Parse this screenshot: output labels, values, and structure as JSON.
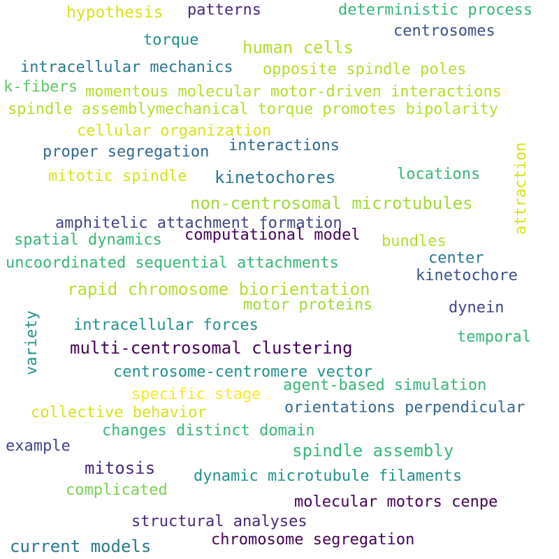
{
  "background": "#ffffff",
  "palette": {
    "dark_purple": "#440154",
    "indigo": "#3b528b",
    "blue": "#31688e",
    "teal": "#21918c",
    "green": "#35b779",
    "light_green": "#5ec962",
    "lime": "#b5de2b",
    "yellow": "#d8e219"
  },
  "words": [
    {
      "text": "hypothesis",
      "color": "#d8e219"
    },
    {
      "text": "patterns",
      "color": "#482878"
    },
    {
      "text": "deterministic process",
      "color": "#35b779"
    },
    {
      "text": "torque",
      "color": "#21918c"
    },
    {
      "text": "centrosomes",
      "color": "#3b528b"
    },
    {
      "text": "human cells",
      "color": "#b5de2b"
    },
    {
      "text": "intracellular mechanics",
      "color": "#2a788e"
    },
    {
      "text": "opposite spindle poles",
      "color": "#b5de2b"
    },
    {
      "text": "k-fibers",
      "color": "#5ec962"
    },
    {
      "text": "momentous molecular motor-driven interactions",
      "color": "#b5de2b"
    },
    {
      "text": "spindle assemblymechanical torque promotes bipolarity",
      "color": "#b5de2b"
    },
    {
      "text": "cellular organization",
      "color": "#d8e219"
    },
    {
      "text": "proper segregation",
      "color": "#31688e"
    },
    {
      "text": "interactions",
      "color": "#31688e"
    },
    {
      "text": "attraction",
      "color": "#d8e219"
    },
    {
      "text": "mitotic spindle",
      "color": "#d8e219"
    },
    {
      "text": "kinetochores",
      "color": "#2a788e"
    },
    {
      "text": "locations",
      "color": "#35b779"
    },
    {
      "text": "non-centrosomal microtubules",
      "color": "#a0da39"
    },
    {
      "text": "amphitelic attachment formation",
      "color": "#414487"
    },
    {
      "text": "spatial dynamics",
      "color": "#35b779"
    },
    {
      "text": "computational model",
      "color": "#440154"
    },
    {
      "text": "bundles",
      "color": "#b5de2b"
    },
    {
      "text": "uncoordinated sequential attachments",
      "color": "#35b779"
    },
    {
      "text": "center",
      "color": "#2a788e"
    },
    {
      "text": "kinetochore",
      "color": "#3b528b"
    },
    {
      "text": "rapid chromosome biorientation",
      "color": "#b5de2b"
    },
    {
      "text": "variety",
      "color": "#21918c"
    },
    {
      "text": "motor proteins",
      "color": "#a0da39"
    },
    {
      "text": "dynein",
      "color": "#414487"
    },
    {
      "text": "intracellular forces",
      "color": "#21918c"
    },
    {
      "text": "temporal",
      "color": "#35b779"
    },
    {
      "text": "multi-centrosomal clustering",
      "color": "#440154"
    },
    {
      "text": "centrosome-centromere vector",
      "color": "#21918c"
    },
    {
      "text": "specific stage",
      "color": "#fde725"
    },
    {
      "text": "agent-based simulation",
      "color": "#35b779"
    },
    {
      "text": "collective behavior",
      "color": "#d8e219"
    },
    {
      "text": "orientations perpendicular",
      "color": "#31688e"
    },
    {
      "text": "changes distinct domain",
      "color": "#35b779"
    },
    {
      "text": "example",
      "color": "#414487"
    },
    {
      "text": "spindle assembly",
      "color": "#35b779"
    },
    {
      "text": "mitosis",
      "color": "#482878"
    },
    {
      "text": "dynamic microtubule filaments",
      "color": "#21918c"
    },
    {
      "text": "complicated",
      "color": "#7ad151"
    },
    {
      "text": "molecular motors cenpe",
      "color": "#440154"
    },
    {
      "text": "structural analyses",
      "color": "#482878"
    },
    {
      "text": "current models",
      "color": "#2a788e"
    },
    {
      "text": "chromosome segregation",
      "color": "#440154"
    }
  ]
}
